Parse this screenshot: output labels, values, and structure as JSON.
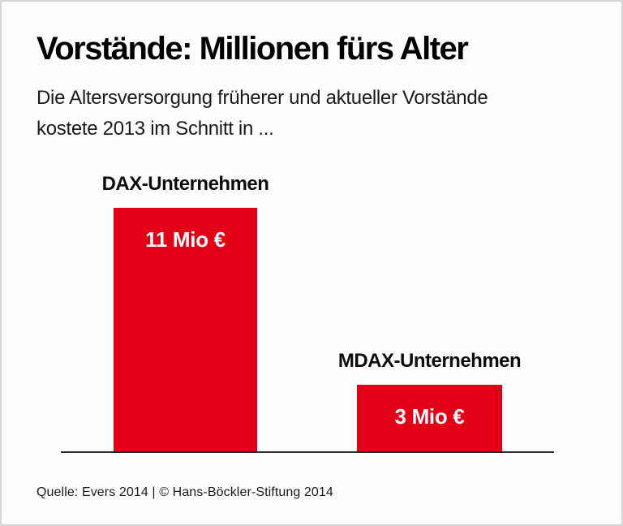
{
  "header": {
    "title": "Vorstände: Millionen fürs Alter",
    "subtitle_line1": "Die Altersversorgung früherer und aktueller Vorstände",
    "subtitle_line2": "kostete 2013 im Schnitt in ..."
  },
  "chart_data": {
    "type": "bar",
    "title": "Vorstände: Millionen fürs Alter",
    "subtitle": "Die Altersversorgung früherer und aktueller Vorstände kostete 2013 im Schnitt in ...",
    "categories": [
      "DAX-Unternehmen",
      "MDAX-Unternehmen"
    ],
    "values": [
      11,
      3
    ],
    "value_labels": [
      "11 Mio €",
      "3 Mio €"
    ],
    "unit": "Mio €",
    "xlabel": "",
    "ylabel": "",
    "ylim": [
      0,
      11
    ],
    "grid": false,
    "legend_position": "none",
    "bar_color": "#e30017",
    "value_label_color": "#ffffff",
    "baseline_color": "#2b2b2b"
  },
  "footer": {
    "source": "Quelle: Evers 2014 | © Hans-Böckler-Stiftung 2014"
  }
}
